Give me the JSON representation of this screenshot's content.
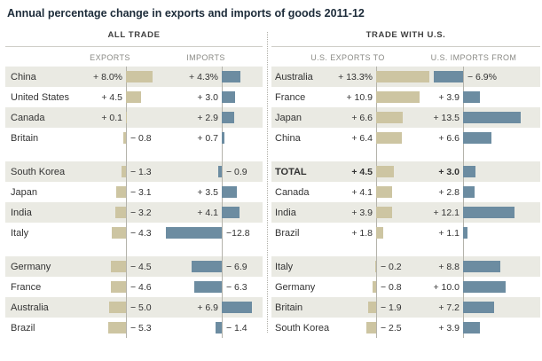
{
  "title": "Annual percentage change in exports and imports of goods 2011-12",
  "colors": {
    "exports_bar": "#cdc5a2",
    "imports_bar": "#6c8ca1",
    "row_stripe": "#eaeae3",
    "axis_line": "#b4b3ab",
    "title_text": "#1c2b39",
    "column_header_text": "#8a8a85",
    "value_text": "#333333"
  },
  "chart_data": {
    "type": "bar",
    "orientation": "horizontal",
    "units": "percent change",
    "title": "Annual percentage change in exports and imports of goods 2011-12",
    "layout_hint": "Two side-by-side panels; each panel has two bar columns with a zero axis. Positive bars extend right (label left of axis), negative bars extend left (label right of axis). Tan bars = exports, blue bars = imports. Rows zebra-striped in groups of four.",
    "panels": [
      {
        "header": "ALL TRADE",
        "columns": [
          "EXPORTS",
          "IMPORTS"
        ],
        "rows": [
          {
            "country": "China",
            "group": 1,
            "values": [
              8.0,
              4.3
            ],
            "labels": [
              "+ 8.0%",
              "+ 4.3%"
            ]
          },
          {
            "country": "United States",
            "group": 1,
            "values": [
              4.5,
              3.0
            ],
            "labels": [
              "+ 4.5",
              "+ 3.0"
            ]
          },
          {
            "country": "Canada",
            "group": 1,
            "values": [
              0.1,
              2.9
            ],
            "labels": [
              "+ 0.1",
              "+ 2.9"
            ]
          },
          {
            "country": "Britain",
            "group": 1,
            "values": [
              -0.8,
              0.7
            ],
            "labels": [
              "− 0.8",
              "+ 0.7"
            ]
          },
          {
            "country": "South Korea",
            "group": 2,
            "values": [
              -1.3,
              -0.9
            ],
            "labels": [
              "− 1.3",
              "− 0.9"
            ]
          },
          {
            "country": "Japan",
            "group": 2,
            "values": [
              -3.1,
              3.5
            ],
            "labels": [
              "− 3.1",
              "+ 3.5"
            ]
          },
          {
            "country": "India",
            "group": 2,
            "values": [
              -3.2,
              4.1
            ],
            "labels": [
              "− 3.2",
              "+ 4.1"
            ]
          },
          {
            "country": "Italy",
            "group": 2,
            "values": [
              -4.3,
              -12.8
            ],
            "labels": [
              "− 4.3",
              "−12.8"
            ]
          },
          {
            "country": "Germany",
            "group": 3,
            "values": [
              -4.5,
              -6.9
            ],
            "labels": [
              "− 4.5",
              "− 6.9"
            ]
          },
          {
            "country": "France",
            "group": 3,
            "values": [
              -4.6,
              -6.3
            ],
            "labels": [
              "− 4.6",
              "− 6.3"
            ]
          },
          {
            "country": "Australia",
            "group": 3,
            "values": [
              -5.0,
              6.9
            ],
            "labels": [
              "− 5.0",
              "+ 6.9"
            ]
          },
          {
            "country": "Brazil",
            "group": 3,
            "values": [
              -5.3,
              -1.4
            ],
            "labels": [
              "− 5.3",
              "− 1.4"
            ]
          }
        ]
      },
      {
        "header": "TRADE WITH U.S.",
        "columns": [
          "U.S. EXPORTS TO",
          "U.S. IMPORTS FROM"
        ],
        "rows": [
          {
            "country": "Australia",
            "group": 1,
            "values": [
              13.3,
              -6.9
            ],
            "labels": [
              "+ 13.3%",
              "− 6.9%"
            ]
          },
          {
            "country": "France",
            "group": 1,
            "values": [
              10.9,
              3.9
            ],
            "labels": [
              "+ 10.9",
              "+ 3.9"
            ]
          },
          {
            "country": "Japan",
            "group": 1,
            "values": [
              6.6,
              13.5
            ],
            "labels": [
              "+ 6.6",
              "+ 13.5"
            ]
          },
          {
            "country": "China",
            "group": 1,
            "values": [
              6.4,
              6.6
            ],
            "labels": [
              "+ 6.4",
              "+ 6.6"
            ]
          },
          {
            "country": "TOTAL",
            "group": 2,
            "bold": true,
            "values": [
              4.5,
              3.0
            ],
            "labels": [
              "+ 4.5",
              "+ 3.0"
            ]
          },
          {
            "country": "Canada",
            "group": 2,
            "values": [
              4.1,
              2.8
            ],
            "labels": [
              "+ 4.1",
              "+ 2.8"
            ]
          },
          {
            "country": "India",
            "group": 2,
            "values": [
              3.9,
              12.1
            ],
            "labels": [
              "+ 3.9",
              "+ 12.1"
            ]
          },
          {
            "country": "Brazil",
            "group": 2,
            "values": [
              1.8,
              1.1
            ],
            "labels": [
              "+ 1.8",
              "+ 1.1"
            ]
          },
          {
            "country": "Italy",
            "group": 3,
            "values": [
              -0.2,
              8.8
            ],
            "labels": [
              "− 0.2",
              "+ 8.8"
            ]
          },
          {
            "country": "Germany",
            "group": 3,
            "values": [
              -0.8,
              10.0
            ],
            "labels": [
              "− 0.8",
              "+ 10.0"
            ]
          },
          {
            "country": "Britain",
            "group": 3,
            "values": [
              -1.9,
              7.2
            ],
            "labels": [
              "− 1.9",
              "+ 7.2"
            ]
          },
          {
            "country": "South Korea",
            "group": 3,
            "values": [
              -2.5,
              3.9
            ],
            "labels": [
              "− 2.5",
              "+ 3.9"
            ]
          }
        ]
      }
    ]
  }
}
